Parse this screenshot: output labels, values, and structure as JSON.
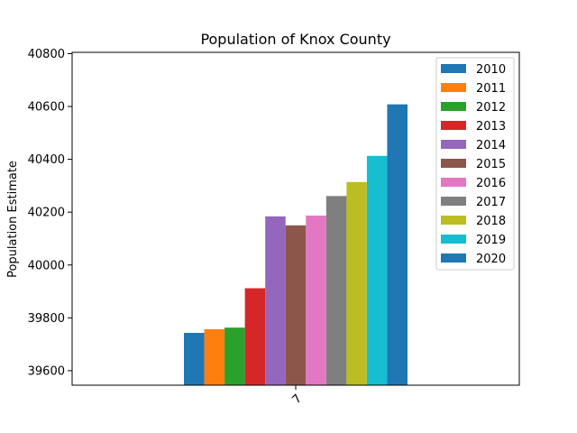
{
  "chart_data": {
    "type": "bar",
    "title": "Population of Knox County",
    "xlabel": "",
    "ylabel": "Population Estimate",
    "categories": [
      "7"
    ],
    "ylim": [
      39545,
      40805
    ],
    "yticks": [
      39600,
      39800,
      40000,
      40200,
      40400,
      40600,
      40800
    ],
    "grid": false,
    "legend_position": "top-right",
    "series": [
      {
        "name": "2010",
        "color": "#1f77b4",
        "values": [
          39743
        ]
      },
      {
        "name": "2011",
        "color": "#ff7f0e",
        "values": [
          39757
        ]
      },
      {
        "name": "2012",
        "color": "#2ca02c",
        "values": [
          39763
        ]
      },
      {
        "name": "2013",
        "color": "#d62728",
        "values": [
          39912
        ]
      },
      {
        "name": "2014",
        "color": "#9467bd",
        "values": [
          40184
        ]
      },
      {
        "name": "2015",
        "color": "#8c564b",
        "values": [
          40150
        ]
      },
      {
        "name": "2016",
        "color": "#e377c2",
        "values": [
          40187
        ]
      },
      {
        "name": "2017",
        "color": "#7f7f7f",
        "values": [
          40261
        ]
      },
      {
        "name": "2018",
        "color": "#bcbd22",
        "values": [
          40314
        ]
      },
      {
        "name": "2019",
        "color": "#17becf",
        "values": [
          40413
        ]
      },
      {
        "name": "2020",
        "color": "#1f77b4",
        "values": [
          40608
        ]
      }
    ]
  }
}
